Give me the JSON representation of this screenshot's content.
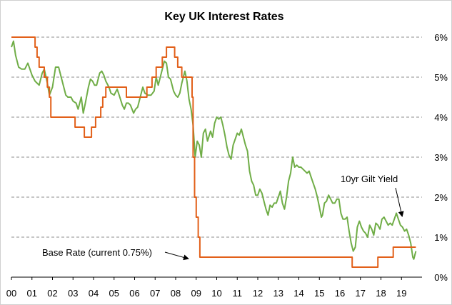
{
  "chart_data": {
    "type": "line",
    "title": "Key UK Interest Rates",
    "xlabel": "",
    "ylabel": "",
    "x_tick_labels": [
      "00",
      "01",
      "02",
      "03",
      "04",
      "05",
      "06",
      "07",
      "08",
      "09",
      "10",
      "11",
      "12",
      "13",
      "14",
      "15",
      "16",
      "17",
      "18",
      "19"
    ],
    "y_tick_labels": [
      "0%",
      "1%",
      "2%",
      "3%",
      "4%",
      "5%",
      "6%"
    ],
    "ylim": [
      0,
      6
    ],
    "xlim": [
      2000,
      2020
    ],
    "grid": "horizontal dashed",
    "legend": "none (direct labels)",
    "colors": {
      "base_rate": "#e2601a",
      "gilt": "#70ad47",
      "grid": "#8c8c8c"
    },
    "annotations": [
      {
        "text": "Base Rate (current 0.75%)",
        "series": "Base Rate"
      },
      {
        "text": "10yr Gilt Yield",
        "series": "10yr Gilt Yield"
      }
    ],
    "series": [
      {
        "name": "Base Rate",
        "step": true,
        "points": [
          [
            2000.0,
            6.0
          ],
          [
            2001.15,
            5.75
          ],
          [
            2001.25,
            5.5
          ],
          [
            2001.35,
            5.25
          ],
          [
            2001.6,
            5.0
          ],
          [
            2001.75,
            4.75
          ],
          [
            2001.85,
            4.5
          ],
          [
            2001.92,
            4.0
          ],
          [
            2003.1,
            3.75
          ],
          [
            2003.55,
            3.5
          ],
          [
            2003.9,
            3.75
          ],
          [
            2004.1,
            4.0
          ],
          [
            2004.35,
            4.25
          ],
          [
            2004.45,
            4.5
          ],
          [
            2004.6,
            4.75
          ],
          [
            2005.6,
            4.5
          ],
          [
            2006.6,
            4.75
          ],
          [
            2006.85,
            5.0
          ],
          [
            2007.05,
            5.25
          ],
          [
            2007.35,
            5.5
          ],
          [
            2007.55,
            5.75
          ],
          [
            2007.95,
            5.5
          ],
          [
            2008.1,
            5.25
          ],
          [
            2008.3,
            5.0
          ],
          [
            2008.8,
            4.5
          ],
          [
            2008.85,
            3.0
          ],
          [
            2008.92,
            2.0
          ],
          [
            2009.0,
            1.5
          ],
          [
            2009.1,
            1.0
          ],
          [
            2009.18,
            0.5
          ],
          [
            2016.6,
            0.25
          ],
          [
            2017.85,
            0.5
          ],
          [
            2018.6,
            0.75
          ],
          [
            2019.7,
            0.75
          ]
        ]
      },
      {
        "name": "10yr Gilt Yield",
        "step": false,
        "points": [
          [
            2000.0,
            5.75
          ],
          [
            2000.1,
            5.9
          ],
          [
            2000.2,
            5.55
          ],
          [
            2000.35,
            5.25
          ],
          [
            2000.5,
            5.2
          ],
          [
            2000.65,
            5.2
          ],
          [
            2000.8,
            5.35
          ],
          [
            2000.9,
            5.2
          ],
          [
            2001.0,
            5.05
          ],
          [
            2001.15,
            4.9
          ],
          [
            2001.35,
            4.8
          ],
          [
            2001.5,
            5.1
          ],
          [
            2001.6,
            5.2
          ],
          [
            2001.75,
            4.85
          ],
          [
            2001.85,
            4.55
          ],
          [
            2002.0,
            4.75
          ],
          [
            2002.15,
            5.25
          ],
          [
            2002.3,
            5.25
          ],
          [
            2002.45,
            4.95
          ],
          [
            2002.55,
            4.75
          ],
          [
            2002.65,
            4.55
          ],
          [
            2002.75,
            4.5
          ],
          [
            2002.9,
            4.5
          ],
          [
            2003.0,
            4.4
          ],
          [
            2003.15,
            4.35
          ],
          [
            2003.25,
            4.2
          ],
          [
            2003.4,
            4.5
          ],
          [
            2003.5,
            4.1
          ],
          [
            2003.6,
            4.35
          ],
          [
            2003.75,
            4.75
          ],
          [
            2003.85,
            4.95
          ],
          [
            2003.95,
            4.9
          ],
          [
            2004.05,
            4.8
          ],
          [
            2004.15,
            4.8
          ],
          [
            2004.3,
            5.1
          ],
          [
            2004.4,
            5.15
          ],
          [
            2004.5,
            5.05
          ],
          [
            2004.6,
            4.9
          ],
          [
            2004.75,
            4.75
          ],
          [
            2004.85,
            4.6
          ],
          [
            2005.0,
            4.55
          ],
          [
            2005.15,
            4.7
          ],
          [
            2005.25,
            4.55
          ],
          [
            2005.4,
            4.3
          ],
          [
            2005.5,
            4.2
          ],
          [
            2005.6,
            4.35
          ],
          [
            2005.7,
            4.35
          ],
          [
            2005.8,
            4.3
          ],
          [
            2005.95,
            4.1
          ],
          [
            2006.05,
            4.2
          ],
          [
            2006.15,
            4.25
          ],
          [
            2006.3,
            4.55
          ],
          [
            2006.4,
            4.75
          ],
          [
            2006.5,
            4.6
          ],
          [
            2006.65,
            4.55
          ],
          [
            2006.8,
            4.55
          ],
          [
            2006.95,
            4.65
          ],
          [
            2007.05,
            5.0
          ],
          [
            2007.15,
            4.8
          ],
          [
            2007.3,
            5.1
          ],
          [
            2007.45,
            5.4
          ],
          [
            2007.55,
            5.35
          ],
          [
            2007.65,
            5.0
          ],
          [
            2007.75,
            4.95
          ],
          [
            2007.9,
            4.65
          ],
          [
            2008.0,
            4.55
          ],
          [
            2008.1,
            4.5
          ],
          [
            2008.2,
            4.6
          ],
          [
            2008.3,
            4.85
          ],
          [
            2008.45,
            5.15
          ],
          [
            2008.55,
            4.9
          ],
          [
            2008.65,
            4.45
          ],
          [
            2008.75,
            4.2
          ],
          [
            2008.85,
            3.8
          ],
          [
            2008.95,
            3.0
          ],
          [
            2009.05,
            3.4
          ],
          [
            2009.15,
            3.3
          ],
          [
            2009.25,
            3.0
          ],
          [
            2009.35,
            3.6
          ],
          [
            2009.45,
            3.7
          ],
          [
            2009.55,
            3.4
          ],
          [
            2009.7,
            3.65
          ],
          [
            2009.8,
            3.5
          ],
          [
            2009.9,
            3.85
          ],
          [
            2010.0,
            4.0
          ],
          [
            2010.1,
            3.95
          ],
          [
            2010.2,
            4.0
          ],
          [
            2010.3,
            3.8
          ],
          [
            2010.4,
            3.55
          ],
          [
            2010.5,
            3.25
          ],
          [
            2010.6,
            3.05
          ],
          [
            2010.7,
            2.95
          ],
          [
            2010.8,
            3.3
          ],
          [
            2010.9,
            3.45
          ],
          [
            2011.0,
            3.6
          ],
          [
            2011.1,
            3.55
          ],
          [
            2011.2,
            3.7
          ],
          [
            2011.3,
            3.5
          ],
          [
            2011.4,
            3.3
          ],
          [
            2011.5,
            3.15
          ],
          [
            2011.6,
            2.65
          ],
          [
            2011.7,
            2.4
          ],
          [
            2011.8,
            2.3
          ],
          [
            2011.9,
            2.05
          ],
          [
            2012.0,
            2.05
          ],
          [
            2012.1,
            2.2
          ],
          [
            2012.2,
            2.1
          ],
          [
            2012.3,
            1.9
          ],
          [
            2012.4,
            1.7
          ],
          [
            2012.5,
            1.55
          ],
          [
            2012.6,
            1.8
          ],
          [
            2012.7,
            1.75
          ],
          [
            2012.8,
            1.85
          ],
          [
            2012.9,
            1.85
          ],
          [
            2013.0,
            2.0
          ],
          [
            2013.1,
            2.15
          ],
          [
            2013.2,
            1.85
          ],
          [
            2013.3,
            1.7
          ],
          [
            2013.4,
            2.0
          ],
          [
            2013.5,
            2.4
          ],
          [
            2013.6,
            2.6
          ],
          [
            2013.7,
            3.0
          ],
          [
            2013.8,
            2.75
          ],
          [
            2013.9,
            2.8
          ],
          [
            2014.0,
            2.75
          ],
          [
            2014.1,
            2.75
          ],
          [
            2014.2,
            2.7
          ],
          [
            2014.3,
            2.65
          ],
          [
            2014.4,
            2.6
          ],
          [
            2014.5,
            2.65
          ],
          [
            2014.6,
            2.5
          ],
          [
            2014.7,
            2.35
          ],
          [
            2014.8,
            2.2
          ],
          [
            2014.9,
            2.0
          ],
          [
            2015.0,
            1.75
          ],
          [
            2015.1,
            1.5
          ],
          [
            2015.15,
            1.55
          ],
          [
            2015.25,
            1.85
          ],
          [
            2015.35,
            1.9
          ],
          [
            2015.45,
            2.05
          ],
          [
            2015.55,
            1.95
          ],
          [
            2015.65,
            1.85
          ],
          [
            2015.75,
            1.85
          ],
          [
            2015.85,
            1.95
          ],
          [
            2015.95,
            1.95
          ],
          [
            2016.05,
            1.6
          ],
          [
            2016.15,
            1.45
          ],
          [
            2016.25,
            1.45
          ],
          [
            2016.35,
            1.5
          ],
          [
            2016.45,
            1.15
          ],
          [
            2016.55,
            0.85
          ],
          [
            2016.65,
            0.65
          ],
          [
            2016.75,
            0.75
          ],
          [
            2016.85,
            1.25
          ],
          [
            2016.95,
            1.4
          ],
          [
            2017.05,
            1.25
          ],
          [
            2017.15,
            1.15
          ],
          [
            2017.25,
            1.1
          ],
          [
            2017.35,
            1.0
          ],
          [
            2017.45,
            1.3
          ],
          [
            2017.55,
            1.2
          ],
          [
            2017.65,
            1.05
          ],
          [
            2017.75,
            1.35
          ],
          [
            2017.85,
            1.3
          ],
          [
            2017.95,
            1.2
          ],
          [
            2018.05,
            1.45
          ],
          [
            2018.15,
            1.5
          ],
          [
            2018.25,
            1.4
          ],
          [
            2018.35,
            1.3
          ],
          [
            2018.45,
            1.35
          ],
          [
            2018.55,
            1.3
          ],
          [
            2018.65,
            1.45
          ],
          [
            2018.75,
            1.6
          ],
          [
            2018.85,
            1.45
          ],
          [
            2018.95,
            1.3
          ],
          [
            2019.05,
            1.25
          ],
          [
            2019.15,
            1.15
          ],
          [
            2019.25,
            1.2
          ],
          [
            2019.35,
            1.05
          ],
          [
            2019.45,
            0.85
          ],
          [
            2019.55,
            0.5
          ],
          [
            2019.6,
            0.45
          ],
          [
            2019.7,
            0.65
          ]
        ]
      }
    ]
  }
}
